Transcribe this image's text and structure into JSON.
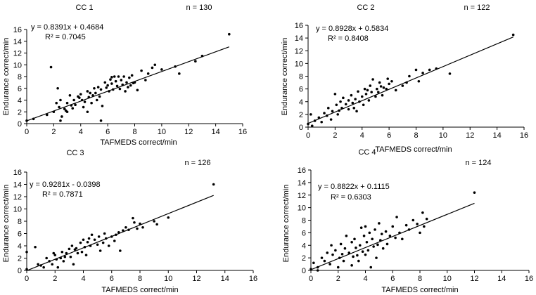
{
  "chart_data": [
    {
      "type": "scatter",
      "title": "CC 1",
      "n_label": "n = 130",
      "equation": "y = 0.8391x + 0.4684",
      "r2": "R² = 0.7045",
      "xlabel": "TAFMEDS correct/min",
      "ylabel": "Endurance correct/min",
      "xlim": [
        0,
        16
      ],
      "ylim": [
        0,
        16
      ],
      "xticks": [
        0,
        2,
        4,
        6,
        8,
        10,
        12,
        14,
        16
      ],
      "yticks": [
        0,
        2,
        4,
        6,
        8,
        10,
        12,
        14,
        16
      ],
      "trend": {
        "slope": 0.8391,
        "intercept": 0.4684,
        "x_range": [
          0,
          15
        ]
      },
      "points": [
        [
          0,
          0.5
        ],
        [
          0.5,
          0.8
        ],
        [
          1.8,
          9.6
        ],
        [
          1.5,
          1.5
        ],
        [
          2.0,
          2.0
        ],
        [
          2.2,
          3.5
        ],
        [
          2.3,
          6.0
        ],
        [
          2.5,
          4.0
        ],
        [
          2.4,
          2.8
        ],
        [
          2.6,
          1.2
        ],
        [
          2.5,
          0.5
        ],
        [
          2.8,
          2.5
        ],
        [
          3.0,
          3.5
        ],
        [
          3.2,
          4.8
        ],
        [
          3.0,
          2.0
        ],
        [
          3.5,
          4.0
        ],
        [
          3.4,
          2.6
        ],
        [
          3.8,
          4.6
        ],
        [
          3.6,
          3.2
        ],
        [
          4.0,
          5.0
        ],
        [
          4.1,
          4.0
        ],
        [
          4.2,
          2.8
        ],
        [
          4.3,
          3.7
        ],
        [
          4.5,
          5.5
        ],
        [
          4.6,
          4.5
        ],
        [
          4.8,
          3.5
        ],
        [
          4.5,
          2.0
        ],
        [
          4.9,
          4.8
        ],
        [
          5.0,
          6.0
        ],
        [
          5.1,
          5.2
        ],
        [
          5.2,
          4.0
        ],
        [
          5.3,
          6.2
        ],
        [
          5.5,
          5.8
        ],
        [
          5.4,
          4.6
        ],
        [
          5.5,
          0.5
        ],
        [
          5.6,
          3.0
        ],
        [
          5.8,
          7.0
        ],
        [
          6.0,
          6.5
        ],
        [
          6.1,
          5.5
        ],
        [
          6.2,
          7.5
        ],
        [
          6.3,
          6.8
        ],
        [
          6.4,
          5.8
        ],
        [
          6.5,
          8.0
        ],
        [
          6.6,
          7.2
        ],
        [
          6.7,
          6.4
        ],
        [
          6.8,
          8.0
        ],
        [
          6.9,
          5.9
        ],
        [
          7.0,
          7.4
        ],
        [
          7.1,
          6.6
        ],
        [
          7.2,
          8.0
        ],
        [
          7.3,
          5.5
        ],
        [
          7.4,
          7.0
        ],
        [
          7.5,
          6.2
        ],
        [
          7.6,
          7.8
        ],
        [
          7.7,
          6.5
        ],
        [
          7.8,
          8.2
        ],
        [
          8.0,
          7.0
        ],
        [
          8.2,
          5.7
        ],
        [
          8.5,
          9.0
        ],
        [
          8.8,
          7.4
        ],
        [
          9.0,
          8.5
        ],
        [
          9.3,
          9.5
        ],
        [
          9.5,
          10.0
        ],
        [
          10.0,
          9.2
        ],
        [
          11.0,
          9.7
        ],
        [
          11.3,
          8.5
        ],
        [
          12.5,
          10.6
        ],
        [
          13.0,
          11.5
        ],
        [
          15.0,
          15.2
        ],
        [
          3.3,
          3.1
        ],
        [
          4.7,
          5.2
        ],
        [
          5.9,
          6.1
        ],
        [
          6.3,
          7.9
        ],
        [
          7.9,
          6.9
        ],
        [
          3.9,
          4.4
        ],
        [
          2.9,
          2.2
        ]
      ]
    },
    {
      "type": "scatter",
      "title": "CC 2",
      "n_label": "n = 122",
      "equation": "y = 0.8928x + 0.5834",
      "r2": "R² = 0.8408",
      "xlabel": "TAFMEDS correct/min",
      "ylabel": "Endurance correct/min",
      "xlim": [
        0,
        16
      ],
      "ylim": [
        0,
        16
      ],
      "xticks": [
        0,
        2,
        4,
        6,
        8,
        10,
        12,
        14,
        16
      ],
      "yticks": [
        0,
        2,
        4,
        6,
        8,
        10,
        12,
        14,
        16
      ],
      "trend": {
        "slope": 0.8928,
        "intercept": 0.5834,
        "x_range": [
          0,
          15.2
        ]
      },
      "points": [
        [
          0,
          0.5
        ],
        [
          0.2,
          2.0
        ],
        [
          0.5,
          1.0
        ],
        [
          0.8,
          1.5
        ],
        [
          1.0,
          0.8
        ],
        [
          1.2,
          2.2
        ],
        [
          1.4,
          1.8
        ],
        [
          1.5,
          3.0
        ],
        [
          1.8,
          2.5
        ],
        [
          2.0,
          5.2
        ],
        [
          2.1,
          3.5
        ],
        [
          2.2,
          2.0
        ],
        [
          2.4,
          4.0
        ],
        [
          2.5,
          3.0
        ],
        [
          2.6,
          4.6
        ],
        [
          2.8,
          3.6
        ],
        [
          3.0,
          4.2
        ],
        [
          3.0,
          2.8
        ],
        [
          3.2,
          5.0
        ],
        [
          3.3,
          3.8
        ],
        [
          3.5,
          4.4
        ],
        [
          3.6,
          2.5
        ],
        [
          3.7,
          5.6
        ],
        [
          3.8,
          4.0
        ],
        [
          4.0,
          4.8
        ],
        [
          4.1,
          3.5
        ],
        [
          4.2,
          6.0
        ],
        [
          4.3,
          5.2
        ],
        [
          4.5,
          4.2
        ],
        [
          4.6,
          6.5
        ],
        [
          4.7,
          5.5
        ],
        [
          4.8,
          7.5
        ],
        [
          5.0,
          4.8
        ],
        [
          5.1,
          6.0
        ],
        [
          5.2,
          5.5
        ],
        [
          5.3,
          7.0
        ],
        [
          5.4,
          6.4
        ],
        [
          5.5,
          5.0
        ],
        [
          5.6,
          6.2
        ],
        [
          5.8,
          6.0
        ],
        [
          6.0,
          6.8
        ],
        [
          6.2,
          7.2
        ],
        [
          6.5,
          5.8
        ],
        [
          7.0,
          6.5
        ],
        [
          7.3,
          7.0
        ],
        [
          7.5,
          8.0
        ],
        [
          8.0,
          9.0
        ],
        [
          8.2,
          7.2
        ],
        [
          8.5,
          8.5
        ],
        [
          9.0,
          9.0
        ],
        [
          9.5,
          9.2
        ],
        [
          10.5,
          8.4
        ],
        [
          15.2,
          14.5
        ],
        [
          0.3,
          0.2
        ],
        [
          1.7,
          1.2
        ],
        [
          3.4,
          3.0
        ],
        [
          4.4,
          5.8
        ],
        [
          2.3,
          2.6
        ],
        [
          5.9,
          7.6
        ]
      ]
    },
    {
      "type": "scatter",
      "title": "CC 3",
      "n_label": "n = 126",
      "equation": "y = 0.9281x - 0.0398",
      "r2": "R² = 0.7871",
      "xlabel": "TAFMEDS correct/min",
      "ylabel": "Endurance correct/min",
      "xlim": [
        0,
        16
      ],
      "ylim": [
        0,
        16
      ],
      "xticks": [
        0,
        2,
        4,
        6,
        8,
        10,
        12,
        14,
        16
      ],
      "yticks": [
        0,
        2,
        4,
        6,
        8,
        10,
        12,
        14,
        16
      ],
      "trend": {
        "slope": 0.9281,
        "intercept": -0.0398,
        "x_range": [
          0,
          13.2
        ]
      },
      "points": [
        [
          0,
          3.0
        ],
        [
          0,
          0.2
        ],
        [
          0.6,
          3.8
        ],
        [
          0.8,
          1.0
        ],
        [
          1.0,
          0.8
        ],
        [
          1.2,
          0.5
        ],
        [
          1.4,
          2.0
        ],
        [
          1.6,
          1.5
        ],
        [
          1.8,
          1.0
        ],
        [
          2.0,
          2.5
        ],
        [
          2.1,
          1.8
        ],
        [
          2.2,
          0.5
        ],
        [
          2.4,
          2.0
        ],
        [
          2.5,
          3.0
        ],
        [
          2.6,
          1.5
        ],
        [
          2.8,
          2.8
        ],
        [
          3.0,
          3.5
        ],
        [
          3.1,
          2.2
        ],
        [
          3.2,
          4.0
        ],
        [
          3.3,
          1.0
        ],
        [
          3.5,
          3.6
        ],
        [
          3.6,
          2.8
        ],
        [
          3.8,
          4.5
        ],
        [
          3.9,
          3.0
        ],
        [
          4.0,
          5.0
        ],
        [
          4.1,
          3.8
        ],
        [
          4.2,
          2.5
        ],
        [
          4.3,
          4.6
        ],
        [
          4.5,
          4.0
        ],
        [
          4.6,
          5.8
        ],
        [
          4.8,
          5.0
        ],
        [
          5.0,
          4.2
        ],
        [
          5.1,
          5.5
        ],
        [
          5.2,
          3.2
        ],
        [
          5.4,
          4.5
        ],
        [
          5.6,
          5.2
        ],
        [
          5.8,
          4.0
        ],
        [
          6.0,
          5.5
        ],
        [
          6.2,
          4.8
        ],
        [
          6.3,
          5.8
        ],
        [
          6.5,
          6.2
        ],
        [
          6.6,
          3.2
        ],
        [
          6.8,
          6.5
        ],
        [
          7.0,
          7.0
        ],
        [
          7.2,
          6.6
        ],
        [
          7.5,
          8.5
        ],
        [
          7.6,
          7.8
        ],
        [
          7.8,
          6.8
        ],
        [
          8.0,
          7.6
        ],
        [
          8.2,
          7.0
        ],
        [
          9.0,
          8.0
        ],
        [
          9.2,
          7.5
        ],
        [
          10.0,
          8.6
        ],
        [
          13.2,
          14.0
        ],
        [
          1.9,
          2.8
        ],
        [
          2.7,
          2.2
        ],
        [
          3.4,
          3.4
        ],
        [
          4.4,
          5.2
        ],
        [
          5.5,
          6.0
        ]
      ]
    },
    {
      "type": "scatter",
      "title": "CC 4",
      "n_label": "n = 124",
      "equation": "y = 0.8822x + 0.1115",
      "r2": "R² = 0.6303",
      "xlabel": "TAFMEDS correct/min",
      "ylabel": "Endurance correct/min",
      "xlim": [
        0,
        16
      ],
      "ylim": [
        0,
        16
      ],
      "xticks": [
        0,
        2,
        4,
        6,
        8,
        10,
        12,
        14,
        16
      ],
      "yticks": [
        0,
        2,
        4,
        6,
        8,
        10,
        12,
        14,
        16
      ],
      "trend": {
        "slope": 0.8822,
        "intercept": 0.1115,
        "x_range": [
          0,
          12
        ]
      },
      "points": [
        [
          0,
          0.2
        ],
        [
          0.2,
          1.2
        ],
        [
          0.5,
          0.5
        ],
        [
          0.8,
          2.0
        ],
        [
          1.0,
          1.5
        ],
        [
          1.2,
          2.8
        ],
        [
          1.4,
          1.0
        ],
        [
          1.5,
          4.0
        ],
        [
          1.6,
          2.5
        ],
        [
          1.8,
          3.2
        ],
        [
          2.0,
          0.5
        ],
        [
          2.1,
          2.0
        ],
        [
          2.2,
          4.2
        ],
        [
          2.4,
          1.5
        ],
        [
          2.5,
          3.5
        ],
        [
          2.6,
          5.5
        ],
        [
          2.8,
          2.8
        ],
        [
          3.0,
          0.8
        ],
        [
          3.0,
          4.5
        ],
        [
          3.1,
          2.2
        ],
        [
          3.2,
          5.0
        ],
        [
          3.3,
          3.6
        ],
        [
          3.5,
          1.5
        ],
        [
          3.6,
          4.0
        ],
        [
          3.7,
          6.8
        ],
        [
          3.8,
          3.0
        ],
        [
          3.9,
          5.5
        ],
        [
          4.0,
          2.5
        ],
        [
          4.0,
          7.0
        ],
        [
          4.1,
          4.5
        ],
        [
          4.2,
          3.2
        ],
        [
          4.3,
          6.0
        ],
        [
          4.4,
          0.5
        ],
        [
          4.5,
          5.0
        ],
        [
          4.6,
          3.8
        ],
        [
          4.7,
          6.5
        ],
        [
          4.8,
          2.0
        ],
        [
          5.0,
          7.5
        ],
        [
          5.1,
          4.8
        ],
        [
          5.2,
          5.8
        ],
        [
          5.3,
          3.5
        ],
        [
          5.5,
          6.2
        ],
        [
          5.6,
          4.2
        ],
        [
          5.8,
          5.5
        ],
        [
          6.0,
          7.0
        ],
        [
          6.2,
          5.2
        ],
        [
          6.3,
          8.5
        ],
        [
          6.5,
          6.0
        ],
        [
          6.7,
          5.0
        ],
        [
          7.0,
          7.2
        ],
        [
          7.2,
          6.5
        ],
        [
          7.5,
          8.0
        ],
        [
          7.8,
          7.4
        ],
        [
          8.0,
          6.0
        ],
        [
          8.2,
          9.2
        ],
        [
          8.3,
          7.0
        ],
        [
          8.5,
          8.2
        ],
        [
          12.0,
          12.4
        ],
        [
          0.5,
          0.0
        ],
        [
          2.3,
          2.6
        ],
        [
          3.4,
          2.4
        ],
        [
          4.9,
          4.1
        ]
      ]
    }
  ]
}
